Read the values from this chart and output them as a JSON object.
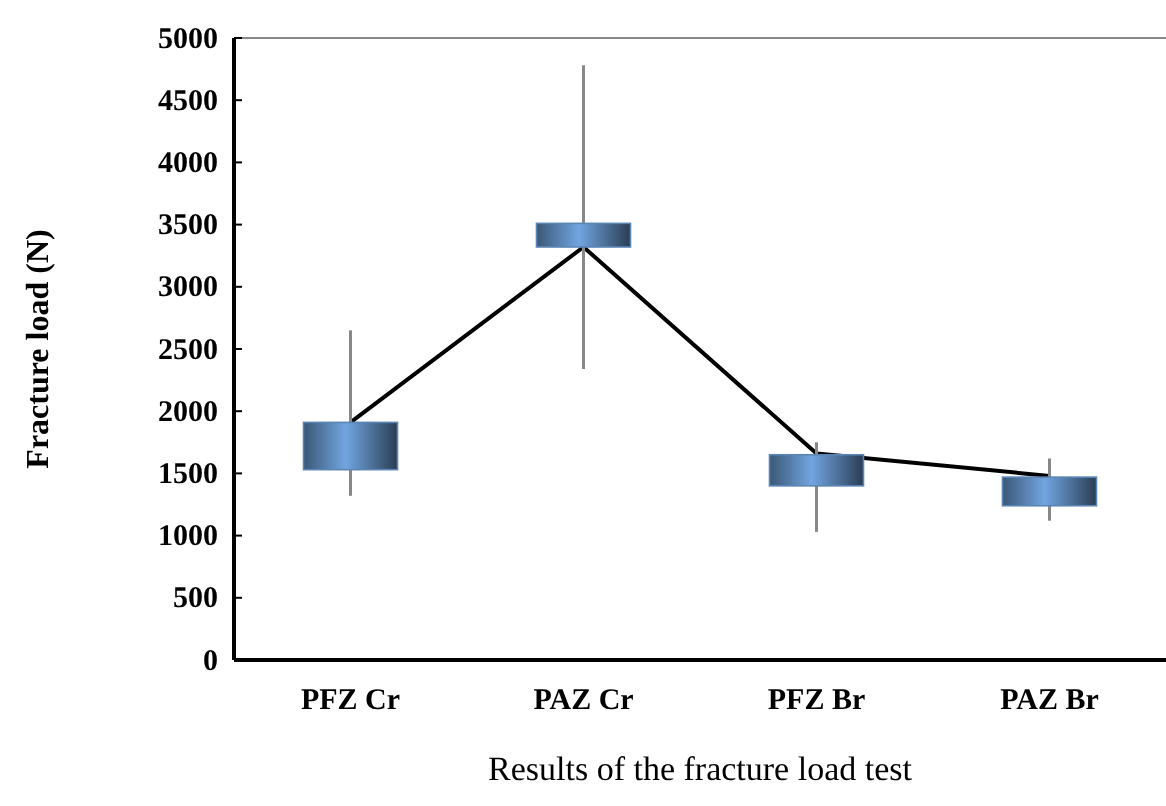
{
  "chart_data": {
    "type": "candlestick",
    "xlabel": "Results of the fracture load test",
    "ylabel": "Fracture load (N)",
    "categories": [
      "PFZ Cr",
      "PAZ Cr",
      "PFZ Br",
      "PAZ Br"
    ],
    "ohlc": [
      [
        1530,
        2650,
        1320,
        1910
      ],
      [
        3320,
        4780,
        2340,
        3510
      ],
      [
        1400,
        1750,
        1030,
        1650
      ],
      [
        1240,
        1620,
        1120,
        1470
      ]
    ],
    "color": "#5b85b5",
    "series": [
      {
        "type": "line",
        "color": "#000000",
        "values": [
          1910,
          3320,
          1660,
          1480
        ]
      }
    ],
    "ylim": [
      0,
      5000
    ],
    "yticks": [
      0,
      500,
      1000,
      1500,
      2000,
      2500,
      3000,
      3500,
      4000,
      4500,
      5000
    ],
    "grid": false
  }
}
